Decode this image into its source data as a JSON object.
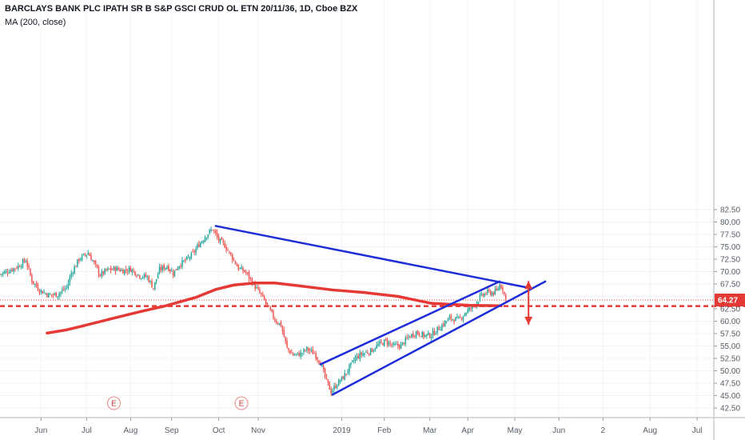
{
  "header": {
    "title": "BARCLAYS BANK PLC IPATH SR B S&P GSCI CRUD OL ETN 20/11/36, 1D, Cboe BZX",
    "study": "MA (200, close)"
  },
  "colors": {
    "up": "#26a69a",
    "down": "#ef5350",
    "ma": "#e53935",
    "trendline": "#1d2ed9",
    "level": "#e53935",
    "arrow": "#e53935"
  },
  "chart_data": {
    "type": "candlestick",
    "title": "BARCLAYS BANK PLC IPATH SR B S&P GSCI CRUD OL ETN 20/11/36, 1D, Cboe BZX",
    "ylim": [
      41.5,
      83.5
    ],
    "xlim": [
      0,
      470
    ],
    "y_ticks": [
      "42.50",
      "45.00",
      "47.50",
      "50.00",
      "52.50",
      "55.00",
      "57.50",
      "60.00",
      "62.50",
      "65.00",
      "67.50",
      "70.00",
      "72.50",
      "75.00",
      "77.50",
      "80.00",
      "82.50"
    ],
    "x_ticks": [
      {
        "label": "Jun",
        "x": 27
      },
      {
        "label": "Jul",
        "x": 57
      },
      {
        "label": "Aug",
        "x": 86
      },
      {
        "label": "Sep",
        "x": 113
      },
      {
        "label": "Oct",
        "x": 144
      },
      {
        "label": "Nov",
        "x": 170
      },
      {
        "label": "2019",
        "x": 225
      },
      {
        "label": "Feb",
        "x": 253
      },
      {
        "label": "Mar",
        "x": 283
      },
      {
        "label": "Apr",
        "x": 308
      },
      {
        "label": "May",
        "x": 339
      },
      {
        "label": "Jun",
        "x": 368
      },
      {
        "label": "2",
        "x": 397
      },
      {
        "label": "Aug",
        "x": 428
      },
      {
        "label": "Jul",
        "x": 459
      }
    ],
    "last_price": {
      "label": "64.27",
      "value": 64.27
    },
    "levels": [
      {
        "value": 63.05,
        "style": "dashed"
      }
    ],
    "events": [
      {
        "label": "E",
        "x": 75
      },
      {
        "label": "E",
        "x": 159
      }
    ],
    "anchors": [
      {
        "x": 0,
        "price": 69.5
      },
      {
        "x": 6,
        "price": 70.2
      },
      {
        "x": 12,
        "price": 71.1
      },
      {
        "x": 17,
        "price": 72.3
      },
      {
        "x": 21,
        "price": 68.2
      },
      {
        "x": 26,
        "price": 66.3
      },
      {
        "x": 32,
        "price": 65.3
      },
      {
        "x": 38,
        "price": 65.4
      },
      {
        "x": 44,
        "price": 66.9
      },
      {
        "x": 47,
        "price": 69.7
      },
      {
        "x": 52,
        "price": 72.5
      },
      {
        "x": 58,
        "price": 73.8
      },
      {
        "x": 62,
        "price": 71.6
      },
      {
        "x": 66,
        "price": 69.3
      },
      {
        "x": 70,
        "price": 70.2
      },
      {
        "x": 76,
        "price": 70.6
      },
      {
        "x": 81,
        "price": 70.2
      },
      {
        "x": 86,
        "price": 70.5
      },
      {
        "x": 92,
        "price": 69.2
      },
      {
        "x": 97,
        "price": 68.9
      },
      {
        "x": 101,
        "price": 66.7
      },
      {
        "x": 105,
        "price": 70.4
      },
      {
        "x": 110,
        "price": 71.1
      },
      {
        "x": 114,
        "price": 69.7
      },
      {
        "x": 118,
        "price": 71.4
      },
      {
        "x": 123,
        "price": 72.4
      },
      {
        "x": 127,
        "price": 73.6
      },
      {
        "x": 131,
        "price": 75.5
      },
      {
        "x": 136,
        "price": 77.4
      },
      {
        "x": 140,
        "price": 78.6
      },
      {
        "x": 144,
        "price": 76.3
      },
      {
        "x": 148,
        "price": 75.3
      },
      {
        "x": 152,
        "price": 73.3
      },
      {
        "x": 157,
        "price": 70.7
      },
      {
        "x": 162,
        "price": 69.8
      },
      {
        "x": 167,
        "price": 67.4
      },
      {
        "x": 172,
        "price": 65.2
      },
      {
        "x": 177,
        "price": 62.5
      },
      {
        "x": 181,
        "price": 60.3
      },
      {
        "x": 185,
        "price": 59.2
      },
      {
        "x": 189,
        "price": 54.5
      },
      {
        "x": 193,
        "price": 53.2
      },
      {
        "x": 198,
        "price": 53.4
      },
      {
        "x": 202,
        "price": 54.4
      },
      {
        "x": 207,
        "price": 53.5
      },
      {
        "x": 211,
        "price": 51.7
      },
      {
        "x": 214,
        "price": 48.7
      },
      {
        "x": 218,
        "price": 45.8
      },
      {
        "x": 222,
        "price": 47.4
      },
      {
        "x": 226,
        "price": 48.7
      },
      {
        "x": 230,
        "price": 50.6
      },
      {
        "x": 234,
        "price": 52.6
      },
      {
        "x": 239,
        "price": 53.5
      },
      {
        "x": 244,
        "price": 54.0
      },
      {
        "x": 249,
        "price": 55.2
      },
      {
        "x": 254,
        "price": 56.0
      },
      {
        "x": 259,
        "price": 55.0
      },
      {
        "x": 264,
        "price": 55.1
      },
      {
        "x": 269,
        "price": 56.8
      },
      {
        "x": 274,
        "price": 57.8
      },
      {
        "x": 279,
        "price": 57.1
      },
      {
        "x": 284,
        "price": 57.2
      },
      {
        "x": 290,
        "price": 58.9
      },
      {
        "x": 296,
        "price": 60.6
      },
      {
        "x": 302,
        "price": 60.3
      },
      {
        "x": 307,
        "price": 61.9
      },
      {
        "x": 312,
        "price": 63.2
      },
      {
        "x": 317,
        "price": 65.1
      },
      {
        "x": 321,
        "price": 65.8
      },
      {
        "x": 324,
        "price": 65.7
      },
      {
        "x": 327,
        "price": 66.0
      },
      {
        "x": 329,
        "price": 67.4
      },
      {
        "x": 331,
        "price": 66.6
      },
      {
        "x": 333,
        "price": 64.4
      }
    ],
    "ma": [
      {
        "x": 31,
        "price": 57.6
      },
      {
        "x": 43,
        "price": 58.2
      },
      {
        "x": 54,
        "price": 59.0
      },
      {
        "x": 72,
        "price": 60.4
      },
      {
        "x": 92,
        "price": 61.9
      },
      {
        "x": 109,
        "price": 63.1
      },
      {
        "x": 129,
        "price": 64.8
      },
      {
        "x": 142,
        "price": 66.4
      },
      {
        "x": 154,
        "price": 67.3
      },
      {
        "x": 168,
        "price": 67.7
      },
      {
        "x": 181,
        "price": 67.7
      },
      {
        "x": 198,
        "price": 67.1
      },
      {
        "x": 219,
        "price": 66.3
      },
      {
        "x": 239,
        "price": 65.8
      },
      {
        "x": 262,
        "price": 65.0
      },
      {
        "x": 284,
        "price": 63.6
      },
      {
        "x": 309,
        "price": 63.2
      },
      {
        "x": 330,
        "price": 63.1
      }
    ],
    "trendlines": [
      {
        "name": "descending-resistance",
        "x1": 142,
        "y1": 79.2,
        "x2": 347,
        "y2": 66.8
      },
      {
        "name": "channel-upper",
        "x1": 211,
        "y1": 51.3,
        "x2": 329,
        "y2": 68.0
      },
      {
        "name": "channel-lower",
        "x1": 219,
        "y1": 45.2,
        "x2": 359,
        "y2": 68.0
      }
    ],
    "arrows": [
      {
        "direction": "up",
        "x": 348,
        "from": 63.4,
        "to": 68.1
      },
      {
        "direction": "down",
        "x": 348,
        "from": 63.4,
        "to": 59.3
      }
    ]
  }
}
